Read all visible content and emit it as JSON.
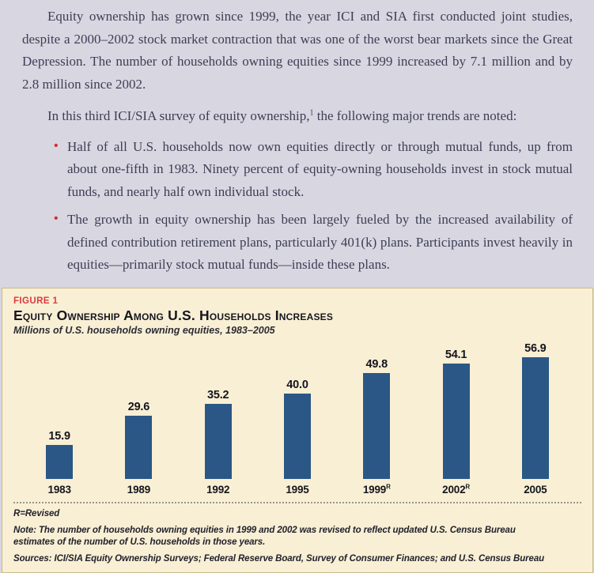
{
  "colors": {
    "page_background": "#d8d7e1",
    "panel_background": "#f8efd5",
    "panel_border": "#c9ba8e",
    "bar_color": "#2b5787",
    "accent_red": "#dd3a3e",
    "body_text": "#3d3d55"
  },
  "document": {
    "bullet_glyph": "•",
    "paragraph1": "Equity ownership has grown since 1999, the year ICI and SIA first conducted joint studies, despite a 2000–2002 stock market contraction that was one of the worst bear markets since the Great Depression. The number of households owning equities since 1999 increased by 7.1 million and by 2.8 million since 2002.",
    "paragraph2": {
      "before": "In this third ICI/SIA survey of equity ownership,",
      "footnote_marker": "1",
      "after": " the following major trends are noted:"
    },
    "bullets": [
      "Half of all U.S. households now own equities directly or through mutual funds, up from about one-fifth in 1983. Ninety percent of equity-owning households invest in stock mutual funds, and nearly half own individual stock.",
      "The growth in equity ownership has been largely fueled by the increased availability of defined contribution retirement plans, particularly 401(k) plans. Participants invest heavily in equities—primarily stock mutual funds—inside these plans."
    ]
  },
  "figure": {
    "label": "Figure 1",
    "title": "Equity Ownership Among U.S. Households Increases",
    "subtitle": "Millions of U.S. households owning equities, 1983–2005",
    "revised": "R=Revised",
    "note": "Note: The number of households owning equities in 1999 and 2002 was revised to reflect updated U.S. Census Bureau estimates of the number of U.S. households in those years.",
    "sources": "Sources: ICI/SIA Equity Ownership Surveys; Federal Reserve Board, Survey of Consumer Finances; and U.S. Census Bureau"
  },
  "chart_data": {
    "type": "bar",
    "title": "Equity Ownership Among U.S. Households Increases",
    "subtitle": "Millions of U.S. households owning equities, 1983–2005",
    "categories": [
      {
        "year": "1983",
        "sup": ""
      },
      {
        "year": "1989",
        "sup": ""
      },
      {
        "year": "1992",
        "sup": ""
      },
      {
        "year": "1995",
        "sup": ""
      },
      {
        "year": "1999",
        "sup": "R"
      },
      {
        "year": "2002",
        "sup": "R"
      },
      {
        "year": "2005",
        "sup": ""
      }
    ],
    "values": [
      15.9,
      29.6,
      35.2,
      40.0,
      49.8,
      54.1,
      56.9
    ],
    "value_labels": [
      "15.9",
      "29.6",
      "35.2",
      "40.0",
      "49.8",
      "54.1",
      "56.9"
    ],
    "ylim": [
      0,
      60
    ],
    "grid": false,
    "legend": false,
    "data_labels": true,
    "bar_color": "#2b5787"
  }
}
